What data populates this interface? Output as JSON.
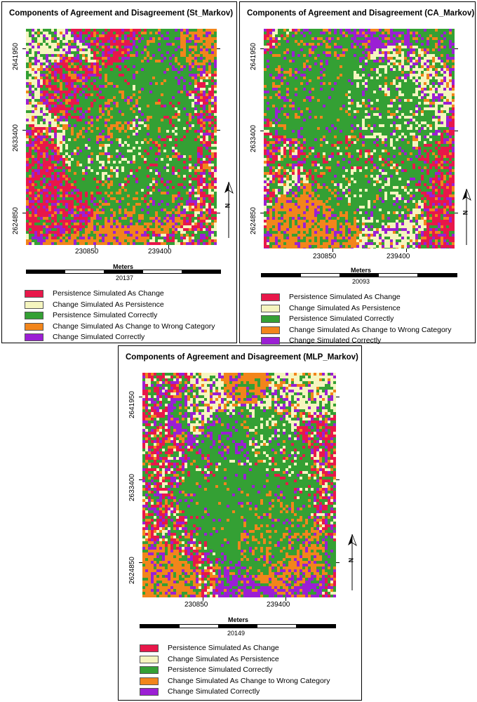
{
  "colors": {
    "persistence_as_change": "#e8174a",
    "change_as_persistence": "#f5f5bf",
    "persistence_correct": "#34a034",
    "change_wrong_category": "#f2851b",
    "change_correct": "#9b1fd4"
  },
  "legend": [
    {
      "label": "Persistence Simulated As Change",
      "color": "#e8174a"
    },
    {
      "label": "Change Simulated As Persistence",
      "color": "#f5f5bf"
    },
    {
      "label": "Persistence Simulated Correctly",
      "color": "#34a034"
    },
    {
      "label": "Change Simulated As Change to Wrong Category",
      "color": "#f2851b"
    },
    {
      "label": "Change Simulated Correctly",
      "color": "#9b1fd4"
    }
  ],
  "maps": [
    {
      "title": "Components of Agreement and Disagreement (St_Markov)",
      "y_ticks": [
        "2641950",
        "2633400",
        "2624850"
      ],
      "x_ticks": [
        "230850",
        "239400"
      ],
      "scale_unit": "Meters",
      "scale_value": "20137",
      "north_label": "N"
    },
    {
      "title": "Components of Agreement and Disagreement (CA_Markov)",
      "y_ticks": [
        "2641950",
        "2633400",
        "2624850"
      ],
      "x_ticks": [
        "230850",
        "239400"
      ],
      "scale_unit": "Meters",
      "scale_value": "20093",
      "north_label": "N"
    },
    {
      "title": "Components of Agreement and Disagreement (MLP_Markov)",
      "y_ticks": [
        "2641950",
        "2633400",
        "2624850"
      ],
      "x_ticks": [
        "230850",
        "239400"
      ],
      "scale_unit": "Meters",
      "scale_value": "20149",
      "north_label": "N"
    }
  ]
}
